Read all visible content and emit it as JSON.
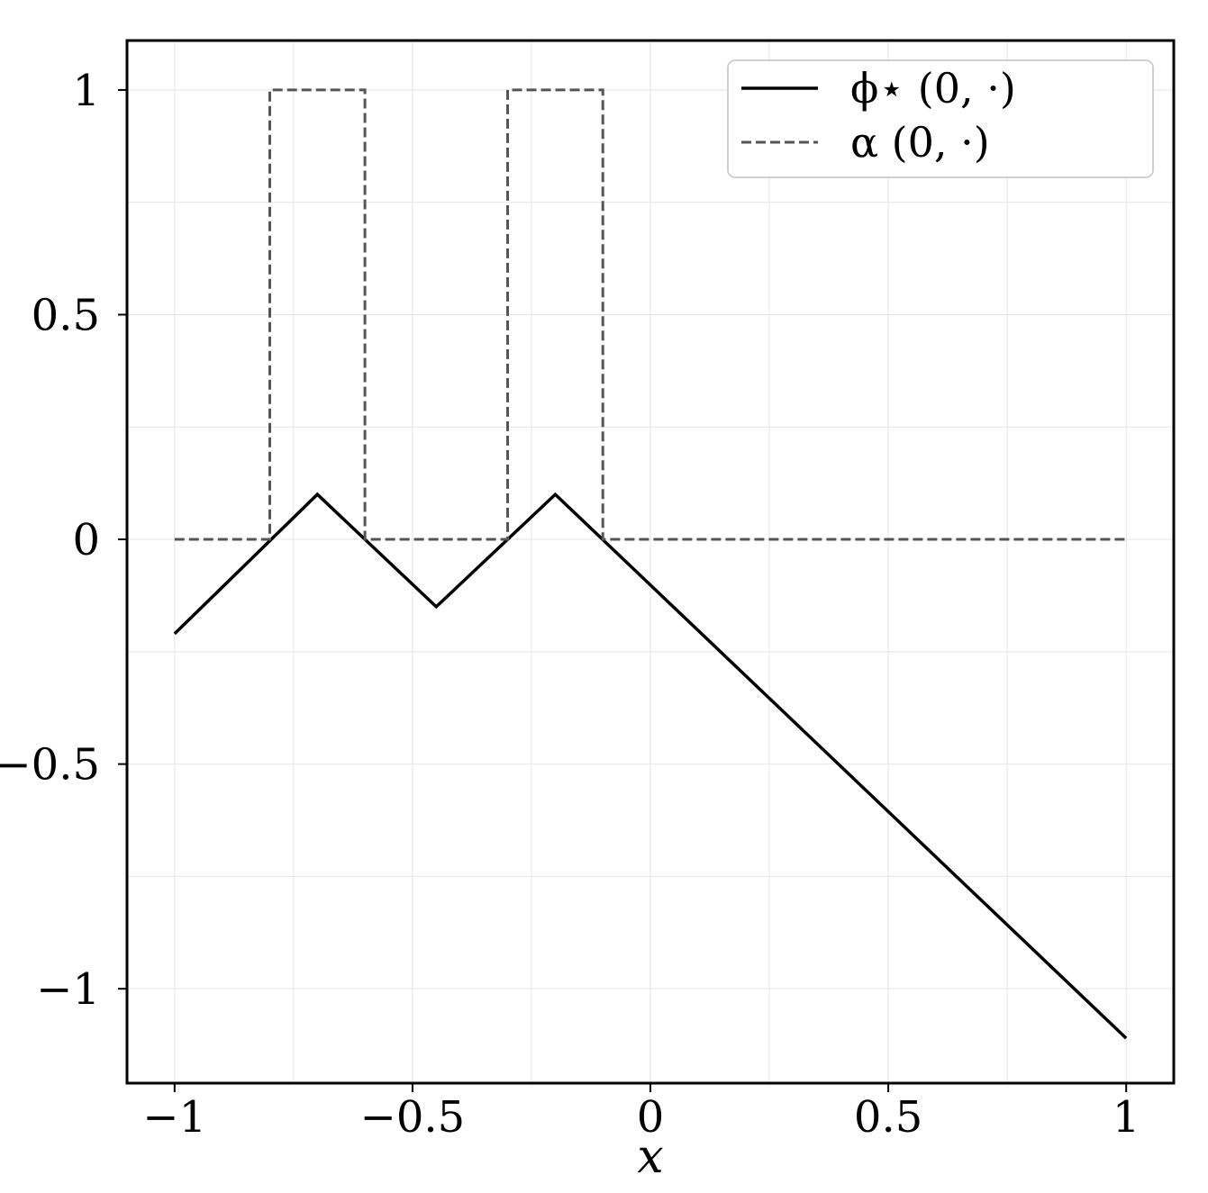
{
  "chart_data": {
    "type": "line",
    "title": "",
    "xlabel": "x",
    "ylabel": "",
    "xlim": [
      -1.1,
      1.1
    ],
    "ylim": [
      -1.21,
      1.11
    ],
    "grid": true,
    "legend_position": "top-right",
    "xticks": [
      -1,
      -0.5,
      0,
      0.5,
      1
    ],
    "xtick_labels": [
      "−1",
      "−0.5",
      "0",
      "0.5",
      "1"
    ],
    "yticks": [
      -1,
      -0.5,
      0,
      0.5,
      1
    ],
    "ytick_labels": [
      "−1",
      "−0.5",
      "0",
      "0.5",
      "1"
    ],
    "series": [
      {
        "name": "ϕ⋆ (0, ·)",
        "style": "solid",
        "color": "#000000",
        "x": [
          -1.0,
          -0.7,
          -0.45,
          -0.2,
          1.0
        ],
        "y": [
          -0.21,
          0.1,
          -0.15,
          0.1,
          -1.11
        ]
      },
      {
        "name": "α (0, ·)",
        "style": "dashed",
        "color": "#555555",
        "x": [
          -1.0,
          -0.8,
          -0.8,
          -0.6,
          -0.6,
          -0.3,
          -0.3,
          -0.1,
          -0.1,
          1.0
        ],
        "y": [
          0,
          0,
          1,
          1,
          0,
          0,
          1,
          1,
          0,
          0
        ]
      }
    ]
  }
}
